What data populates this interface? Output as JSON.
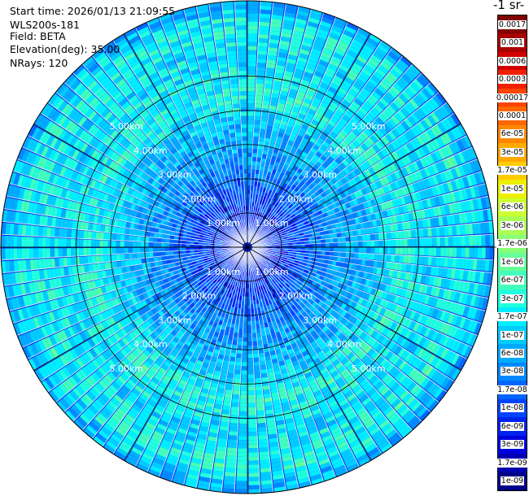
{
  "info": {
    "start_time": "Start time: 2026/01/13 21:09:55",
    "instrument": "WLS200s-181",
    "field": "Field: BETA",
    "elevation": "Elevation(deg): 35.00",
    "nrays": "NRays: 120"
  },
  "colorbar": {
    "title": "-1 sr-",
    "labels": [
      "0.0017",
      "0.001",
      "0.0006",
      "0.0003",
      "0.00017",
      "0.0001",
      "6e-05",
      "3e-05",
      "1.7e-05",
      "1e-05",
      "6e-06",
      "3e-06",
      "1.7e-06",
      "1e-06",
      "6e-07",
      "3e-07",
      "1.7e-07",
      "1e-07",
      "6e-08",
      "3e-08",
      "1.7e-08",
      "1e-08",
      "6e-09",
      "3e-09",
      "1.7e-09",
      "1e-09"
    ],
    "colors": [
      "#800000",
      "#a80000",
      "#d00000",
      "#f02000",
      "#ff4400",
      "#ff6600",
      "#ff8800",
      "#ffaa00",
      "#ffcc00",
      "#eeee00",
      "#ccff33",
      "#aaff55",
      "#88ff77",
      "#66ff99",
      "#44ffbb",
      "#22ffdd",
      "#00eeff",
      "#00ccff",
      "#00aaff",
      "#0088ff",
      "#0066ff",
      "#0044ff",
      "#0022ee",
      "#0000dd",
      "#0000b0",
      "#000088"
    ]
  },
  "chart_data": {
    "type": "heatmap",
    "projection": "polar PPI",
    "field": "BETA",
    "elevation_deg": 35.0,
    "n_rays": 120,
    "range_rings_km": [
      1,
      2,
      3,
      4,
      5
    ],
    "ring_labels": [
      "1.00km",
      "2.00km",
      "3.00km",
      "4.00km",
      "5.00km"
    ],
    "max_range_km": 7.2,
    "color_scale": "log",
    "value_range": [
      1e-09,
      0.0017
    ],
    "radial_profile": [
      {
        "range_km": 0.0,
        "value": 5e-09
      },
      {
        "range_km": 1.5,
        "value": 1e-08
      },
      {
        "range_km": 2.5,
        "value": 4e-08
      },
      {
        "range_km": 3.5,
        "value": 8e-08
      },
      {
        "range_km": 4.5,
        "value": 3e-07
      },
      {
        "range_km": 5.5,
        "value": 1.5e-07
      },
      {
        "range_km": 6.5,
        "value": 3e-07
      },
      {
        "range_km": 7.2,
        "value": 5e-08
      }
    ]
  }
}
